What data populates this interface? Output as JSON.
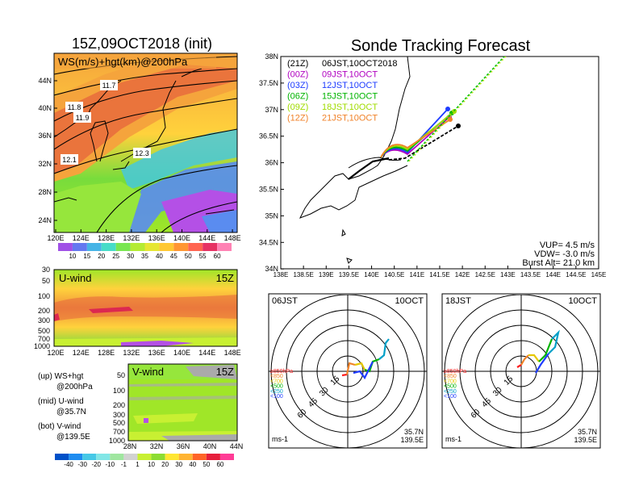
{
  "left": {
    "main_title": "15Z,09OCT2018 (init)",
    "map": {
      "inner_title": "WS(m/s)+hgt(km)@200hPa",
      "lat_ticks": [
        "44N",
        "40N",
        "36N",
        "32N",
        "28N",
        "24N"
      ],
      "lon_ticks": [
        "120E",
        "124E",
        "128E",
        "132E",
        "136E",
        "140E",
        "144E",
        "148E"
      ],
      "hgt_labels": [
        "11.7",
        "11.8",
        "11.9",
        "12.3",
        "12.1"
      ]
    },
    "ws_colorbar": [
      "10",
      "15",
      "20",
      "25",
      "30",
      "35",
      "40",
      "45",
      "50",
      "55",
      "60"
    ],
    "uwind": {
      "title": "U-wind",
      "time": "15Z",
      "p_ticks": [
        "30",
        "50",
        "100",
        "200",
        "300",
        "500",
        "700",
        "1000"
      ],
      "lon_ticks": [
        "120E",
        "124E",
        "128E",
        "132E",
        "136E",
        "140E",
        "144E",
        "148E"
      ]
    },
    "vwind": {
      "title": "V-wind",
      "time": "15Z",
      "p_ticks": [
        "50",
        "100",
        "200",
        "300",
        "500",
        "700",
        "1000"
      ],
      "lat_ticks": [
        "28N",
        "32N",
        "36N",
        "40N",
        "44N"
      ]
    },
    "legend": [
      {
        "a": "(up) WS+hgt",
        "b": "@200hPa"
      },
      {
        "a": "(mid) U-wind",
        "b": "@35.7N"
      },
      {
        "a": "(bot) V-wind",
        "b": "@139.5E"
      }
    ],
    "wind_colorbar": [
      "-40",
      "-30",
      "-20",
      "-10",
      "-1",
      "1",
      "10",
      "20",
      "30",
      "40",
      "50",
      "60"
    ]
  },
  "forecast": {
    "title": "Sonde Tracking Forecast",
    "lat_ticks": [
      "38N",
      "37.5N",
      "37N",
      "36.5N",
      "36N",
      "35.5N",
      "35N",
      "34.5N",
      "34N"
    ],
    "lon_ticks": [
      "138E",
      "138.5E",
      "139E",
      "139.5E",
      "140E",
      "140.5E",
      "141E",
      "141.5E",
      "142E",
      "142.5E",
      "143E",
      "143.5E",
      "144E",
      "144.5E",
      "145E"
    ],
    "runs": [
      {
        "utc": "(21Z)",
        "jst": "06JST,10OCT2018",
        "color": "#000000"
      },
      {
        "utc": "(00Z)",
        "jst": "09JST,10OCT",
        "color": "#b000c0"
      },
      {
        "utc": "(03Z)",
        "jst": "12JST,10OCT",
        "color": "#1e3cff"
      },
      {
        "utc": "(06Z)",
        "jst": "15JST,10OCT",
        "color": "#00b400"
      },
      {
        "utc": "(09Z)",
        "jst": "18JST,10OCT",
        "color": "#a0dc00"
      },
      {
        "utc": "(12Z)",
        "jst": "21JST,10OCT",
        "color": "#f08228"
      }
    ],
    "params": [
      "VUP= 4.5 m/s",
      "VDW= -3.0 m/s",
      "Burst Alt= 21.0 km"
    ]
  },
  "hodo_left": {
    "time": "06JST",
    "date": "10OCT",
    "rings": [
      "15",
      "30",
      "45",
      "60"
    ],
    "unit": "ms-1",
    "loc1": "35.7N",
    "loc2": "139.5E"
  },
  "hodo_right": {
    "time": "18JST",
    "date": "10OCT",
    "rings": [
      "15",
      "30",
      "45",
      "60"
    ],
    "unit": "ms-1",
    "loc1": "35.7N",
    "loc2": "139.5E"
  },
  "hodo_levels": [
    {
      "t": "≥850hPa",
      "c": "#ff2020"
    },
    {
      "t": "<850",
      "c": "#f08228"
    },
    {
      "t": "<700",
      "c": "#e6c800"
    },
    {
      "t": "<500",
      "c": "#00b400"
    },
    {
      "t": "<250",
      "c": "#00a0c8"
    },
    {
      "t": "<100",
      "c": "#1e3cff"
    }
  ]
}
